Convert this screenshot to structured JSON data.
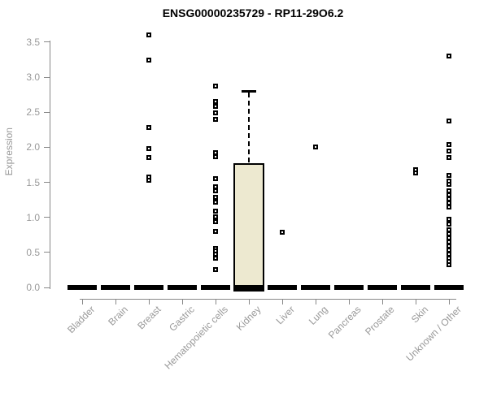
{
  "title": "ENSG00000235729 - RP11-29O6.2",
  "chart_data": {
    "type": "boxplot",
    "title": "ENSG00000235729 - RP11-29O6.2",
    "xlabel": "",
    "ylabel": "Expression",
    "ylim": [
      0,
      3.6
    ],
    "yticks": [
      0.0,
      0.5,
      1.0,
      1.5,
      2.0,
      2.5,
      3.0,
      3.5
    ],
    "grid": false,
    "legend": false,
    "categories": [
      "Bladder",
      "Brain",
      "Breast",
      "Gastric",
      "Hematopoietic cells",
      "Kidney",
      "Liver",
      "Lung",
      "Pancreas",
      "Prostate",
      "Skin",
      "Unknown / Other"
    ],
    "boxes": [
      {
        "category": "Bladder",
        "median": 0,
        "q1": 0,
        "q3": 0,
        "whisker_low": 0,
        "whisker_high": 0,
        "outliers": []
      },
      {
        "category": "Brain",
        "median": 0,
        "q1": 0,
        "q3": 0,
        "whisker_low": 0,
        "whisker_high": 0,
        "outliers": []
      },
      {
        "category": "Breast",
        "median": 0,
        "q1": 0,
        "q3": 0,
        "whisker_low": 0,
        "whisker_high": 0,
        "outliers": [
          3.6,
          3.25,
          2.28,
          1.98,
          1.85,
          1.58,
          1.53
        ]
      },
      {
        "category": "Gastric",
        "median": 0,
        "q1": 0,
        "q3": 0,
        "whisker_low": 0,
        "whisker_high": 0,
        "outliers": []
      },
      {
        "category": "Hematopoietic cells",
        "median": 0,
        "q1": 0,
        "q3": 0,
        "whisker_low": 0,
        "whisker_high": 0,
        "outliers": [
          2.87,
          2.65,
          2.58,
          2.49,
          2.4,
          1.92,
          1.87,
          1.55,
          1.44,
          1.38,
          1.29,
          1.22,
          1.09,
          1.01,
          0.94,
          0.8,
          0.56,
          0.52,
          0.47,
          0.42,
          0.25
        ]
      },
      {
        "category": "Kidney",
        "median": 0,
        "q1": 0,
        "q3": 1.77,
        "whisker_low": 0,
        "whisker_high": 2.8,
        "outliers": []
      },
      {
        "category": "Liver",
        "median": 0,
        "q1": 0,
        "q3": 0,
        "whisker_low": 0,
        "whisker_high": 0,
        "outliers": [
          0.79
        ]
      },
      {
        "category": "Lung",
        "median": 0,
        "q1": 0,
        "q3": 0,
        "whisker_low": 0,
        "whisker_high": 0,
        "outliers": [
          2.0
        ]
      },
      {
        "category": "Pancreas",
        "median": 0,
        "q1": 0,
        "q3": 0,
        "whisker_low": 0,
        "whisker_high": 0,
        "outliers": []
      },
      {
        "category": "Prostate",
        "median": 0,
        "q1": 0,
        "q3": 0,
        "whisker_low": 0,
        "whisker_high": 0,
        "outliers": []
      },
      {
        "category": "Skin",
        "median": 0,
        "q1": 0,
        "q3": 0,
        "whisker_low": 0,
        "whisker_high": 0,
        "outliers": [
          1.68,
          1.63
        ]
      },
      {
        "category": "Unknown / Other",
        "median": 0,
        "q1": 0,
        "q3": 0,
        "whisker_low": 0,
        "whisker_high": 0,
        "outliers": [
          3.3,
          2.37,
          2.04,
          1.95,
          1.85,
          1.6,
          1.52,
          1.47,
          1.38,
          1.32,
          1.26,
          1.2,
          1.15,
          0.97,
          0.9,
          0.82,
          0.76,
          0.71,
          0.65,
          0.59,
          0.53,
          0.47,
          0.42,
          0.37,
          0.32
        ]
      }
    ],
    "style": {
      "box_fill": "#ede9d0",
      "box_stroke": "#000000",
      "median_color": "#000000",
      "point_color": "#000000",
      "axis_color": "#888888",
      "tick_text_color": "#999999",
      "title_color": "#000000"
    }
  }
}
